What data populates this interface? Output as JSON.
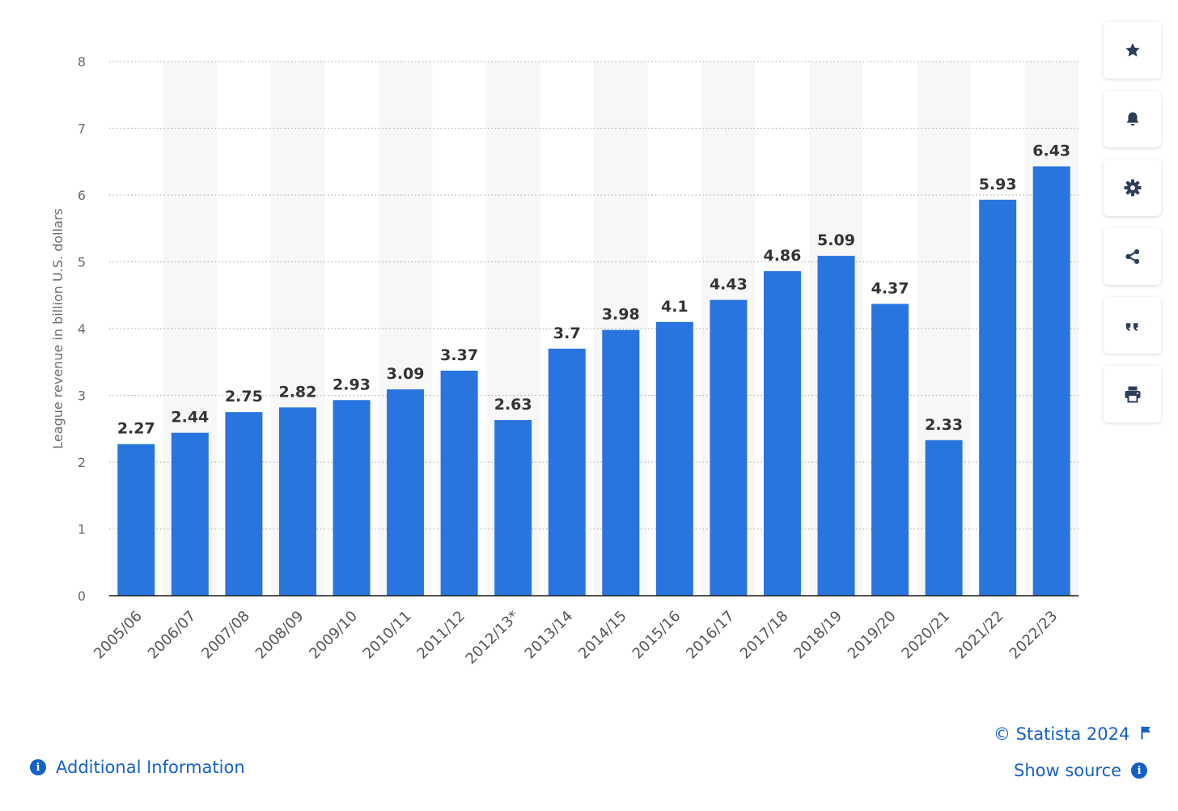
{
  "chart_data": {
    "type": "bar",
    "categories": [
      "2005/06",
      "2006/07",
      "2007/08",
      "2008/09",
      "2009/10",
      "2010/11",
      "2011/12",
      "2012/13*",
      "2013/14",
      "2014/15",
      "2015/16",
      "2016/17",
      "2017/18",
      "2018/19",
      "2019/20",
      "2020/21",
      "2021/22",
      "2022/23"
    ],
    "values": [
      2.27,
      2.44,
      2.75,
      2.82,
      2.93,
      3.09,
      3.37,
      2.63,
      3.7,
      3.98,
      4.1,
      4.43,
      4.86,
      5.09,
      4.37,
      2.33,
      5.93,
      6.43
    ],
    "value_labels": [
      "2.27",
      "2.44",
      "2.75",
      "2.82",
      "2.93",
      "3.09",
      "3.37",
      "2.63",
      "3.7",
      "3.98",
      "4.1",
      "4.43",
      "4.86",
      "5.09",
      "4.37",
      "2.33",
      "5.93",
      "6.43"
    ],
    "ylabel": "League revenue in billion U.S. dollars",
    "xlabel": "",
    "ylim": [
      0,
      8
    ],
    "yticks": [
      0,
      1,
      2,
      3,
      4,
      5,
      6,
      7,
      8
    ],
    "grid": true,
    "bar_color": "#2975e0",
    "stripe_color": "#f7f7f7"
  },
  "toolbar": {
    "items": [
      {
        "name": "favorite",
        "icon": "star-icon"
      },
      {
        "name": "notification",
        "icon": "bell-icon"
      },
      {
        "name": "settings",
        "icon": "gear-icon"
      },
      {
        "name": "share",
        "icon": "share-icon"
      },
      {
        "name": "cite",
        "icon": "quote-icon"
      },
      {
        "name": "print",
        "icon": "printer-icon"
      }
    ],
    "icon_color": "#2d3e5a"
  },
  "footer": {
    "copyright": "© Statista 2024",
    "additional_information": "Additional Information",
    "show_source": "Show source",
    "link_color": "#1660c9"
  }
}
